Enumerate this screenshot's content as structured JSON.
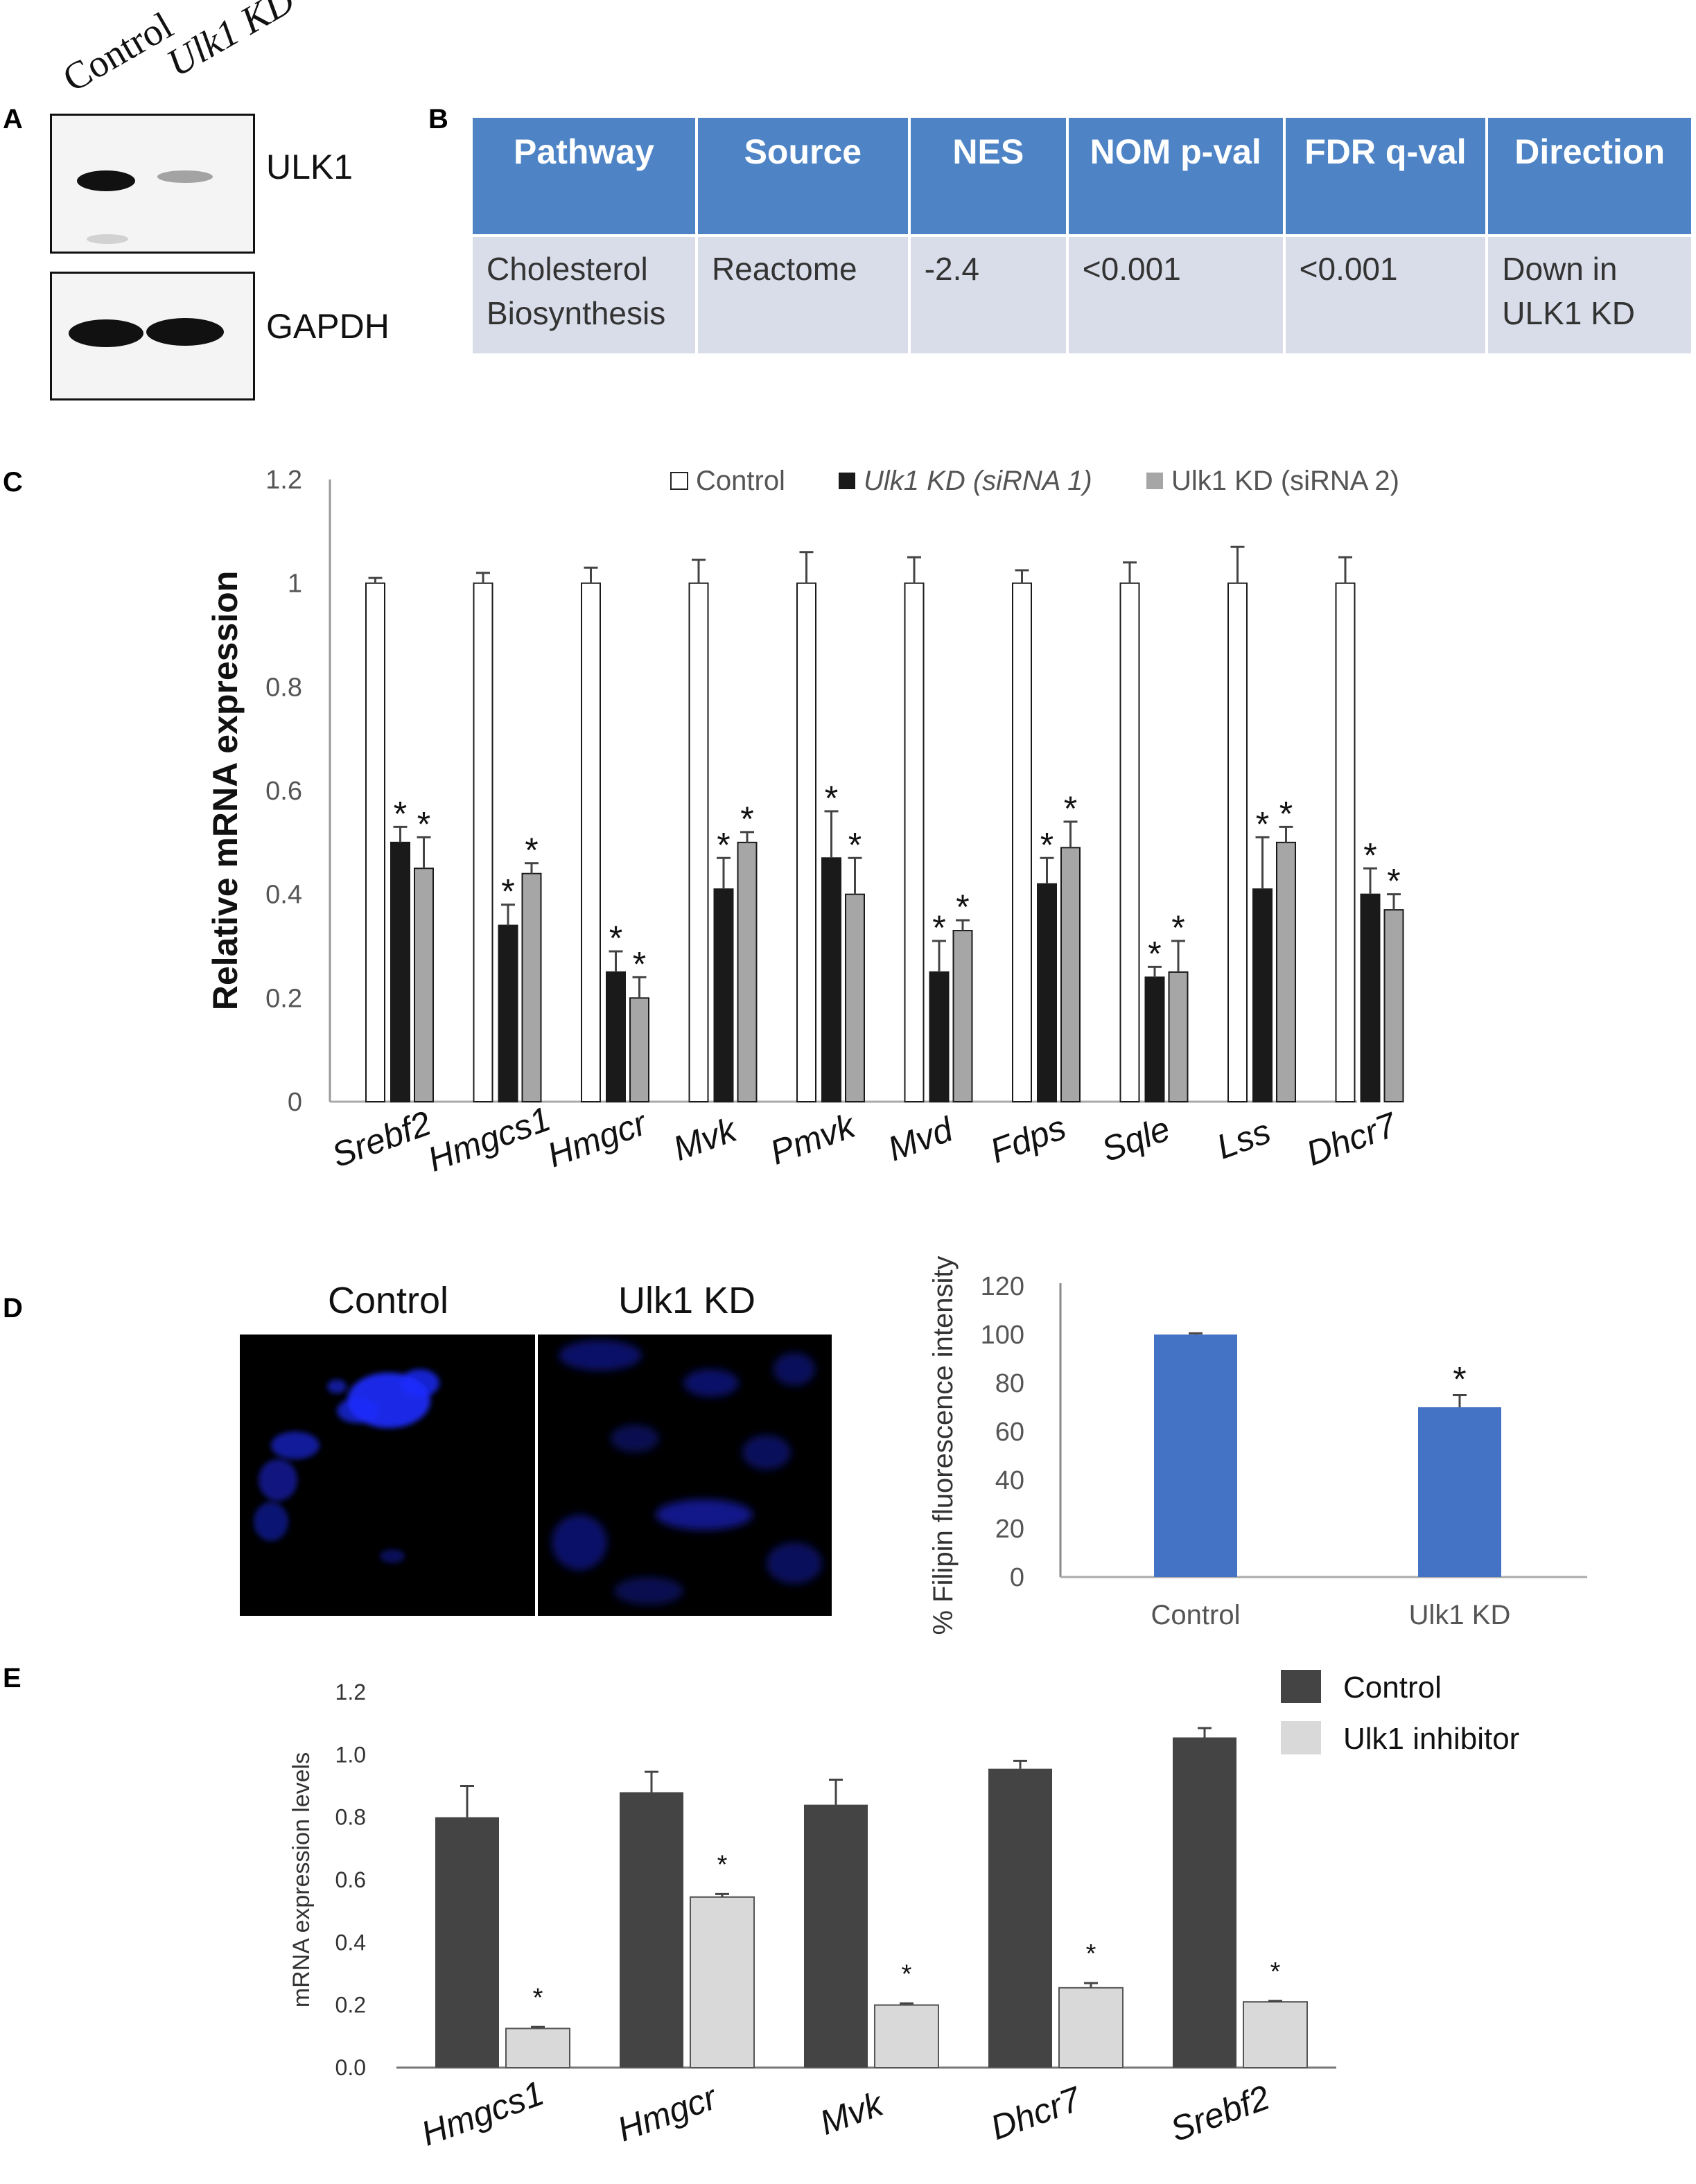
{
  "panel_letters": [
    "A",
    "B",
    "C",
    "D",
    "E"
  ],
  "panelA": {
    "lanes": [
      "Control",
      "Ulk1 KD"
    ],
    "blots": [
      {
        "label": "ULK1",
        "band_intensity": [
          0.95,
          0.35
        ]
      },
      {
        "label": "GAPDH",
        "band_intensity": [
          1.0,
          1.0
        ]
      }
    ]
  },
  "panelB": {
    "headers": [
      "Pathway",
      "Source",
      "NES",
      "NOM p-val",
      "FDR q-val",
      "Direction"
    ],
    "rows": [
      [
        "Cholesterol Biosynthesis",
        "Reactome",
        "-2.4",
        "<0.001",
        "<0.001",
        "Down in ULK1 KD"
      ]
    ],
    "colors": {
      "header_bg": "#4e84c5",
      "cell_bg": "#d8dde9"
    }
  },
  "panelD": {
    "image_titles": [
      "Control",
      "Ulk1 KD"
    ]
  },
  "chart_data": [
    {
      "type": "bar",
      "panel": "C",
      "ylabel": "Relative mRNA expression",
      "ylim": [
        0,
        1.2
      ],
      "yticks": [
        "0",
        "0.2",
        "0.4",
        "0.6",
        "0.8",
        "1",
        "1.2"
      ],
      "categories": [
        "Srebf2",
        "Hmgcs1",
        "Hmgcr",
        "Mvk",
        "Pmvk",
        "Mvd",
        "Fdps",
        "Sqle",
        "Lss",
        "Dhcr7"
      ],
      "series": [
        {
          "name": "Control",
          "color": "#ffffff",
          "values": [
            1,
            1,
            1,
            1,
            1,
            1,
            1,
            1,
            1,
            1
          ],
          "errors": [
            0.01,
            0.02,
            0.03,
            0.045,
            0.06,
            0.05,
            0.025,
            0.04,
            0.07,
            0.05
          ]
        },
        {
          "name": "Ulk1 KD (siRNA 1)",
          "color": "#1a1a1a",
          "values": [
            0.5,
            0.34,
            0.25,
            0.41,
            0.47,
            0.25,
            0.42,
            0.24,
            0.41,
            0.4
          ],
          "errors": [
            0.03,
            0.04,
            0.04,
            0.06,
            0.09,
            0.06,
            0.05,
            0.02,
            0.1,
            0.05
          ]
        },
        {
          "name": "Ulk1 KD (siRNA 2)",
          "color": "#a6a6a6",
          "values": [
            0.45,
            0.44,
            0.2,
            0.5,
            0.4,
            0.33,
            0.49,
            0.25,
            0.5,
            0.37
          ],
          "errors": [
            0.06,
            0.02,
            0.04,
            0.02,
            0.07,
            0.02,
            0.05,
            0.06,
            0.03,
            0.03
          ]
        }
      ],
      "significance": "*",
      "legend": "top-right"
    },
    {
      "type": "bar",
      "panel": "D",
      "ylabel": "% Filipin fluorescence intensity",
      "ylim": [
        0,
        120
      ],
      "yticks": [
        "0",
        "20",
        "40",
        "60",
        "80",
        "100",
        "120"
      ],
      "categories": [
        "Control",
        "Ulk1 KD"
      ],
      "values": [
        100,
        70
      ],
      "errors": [
        0.5,
        5
      ],
      "color": "#4472c4",
      "significance": "*"
    },
    {
      "type": "bar",
      "panel": "E",
      "ylabel": "mRNA expression levels",
      "ylim": [
        0,
        1.2
      ],
      "yticks": [
        "0.0",
        "0.2",
        "0.4",
        "0.6",
        "0.8",
        "1.0",
        "1.2"
      ],
      "categories": [
        "Hmgcs1",
        "Hmgcr",
        "Mvk",
        "Dhcr7",
        "Srebf2"
      ],
      "series": [
        {
          "name": "Control",
          "color": "#444444",
          "values": [
            0.8,
            0.88,
            0.84,
            0.955,
            1.055
          ],
          "errors": [
            0.1,
            0.065,
            0.08,
            0.025,
            0.03
          ]
        },
        {
          "name": "Ulk1 inhibitor",
          "color": "#d9d9d9",
          "values": [
            0.125,
            0.545,
            0.2,
            0.255,
            0.21
          ],
          "errors": [
            0.005,
            0.01,
            0.005,
            0.015,
            0.003
          ]
        }
      ],
      "significance": "*",
      "legend": "top-right"
    }
  ]
}
